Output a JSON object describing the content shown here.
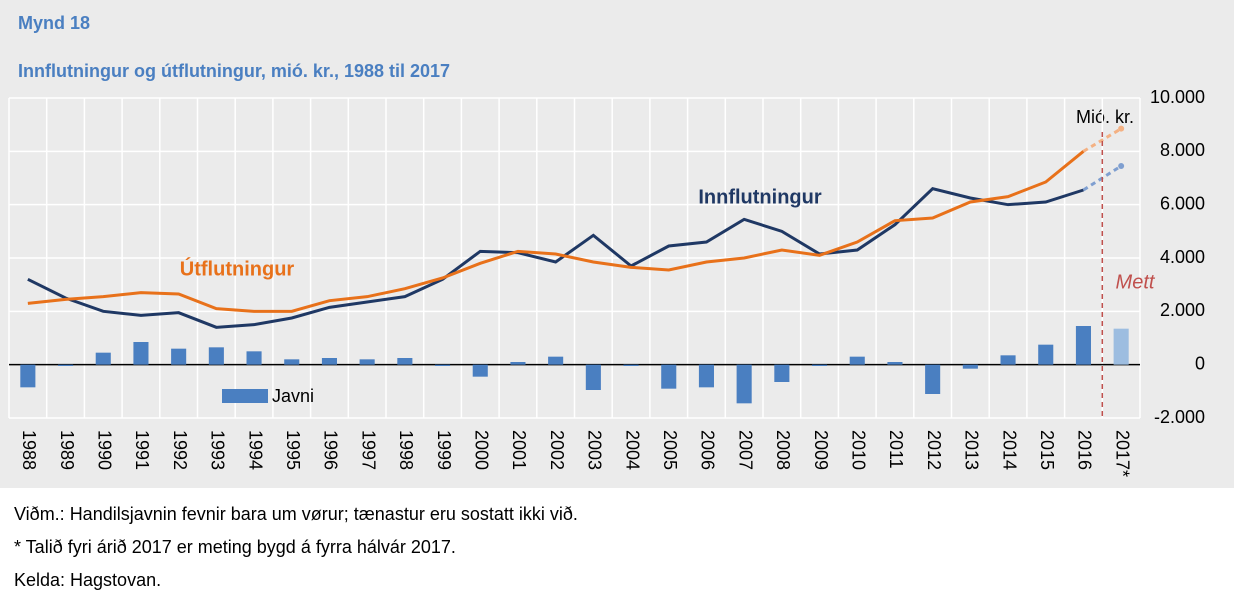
{
  "chart_data": {
    "type": "combo",
    "title": "Mynd 18",
    "subtitle": "Innflutningur og útflutningur, mió. kr., 1988 til 2017",
    "y_unit_label": "Mió. kr.",
    "categories": [
      "1988",
      "1989",
      "1990",
      "1991",
      "1992",
      "1993",
      "1994",
      "1995",
      "1996",
      "1997",
      "1998",
      "1999",
      "2000",
      "2001",
      "2002",
      "2003",
      "2004",
      "2005",
      "2006",
      "2007",
      "2008",
      "2009",
      "2010",
      "2011",
      "2012",
      "2013",
      "2014",
      "2015",
      "2016",
      "2017*"
    ],
    "series": [
      {
        "name": "Javni",
        "kind": "bar",
        "color": "#4a7fc1",
        "estimate_color": "#9dbde0",
        "values": [
          -850,
          -50,
          450,
          850,
          600,
          650,
          500,
          200,
          250,
          200,
          250,
          -50,
          -450,
          100,
          300,
          -950,
          -50,
          -900,
          -850,
          -1450,
          -650,
          -50,
          300,
          100,
          -1100,
          -150,
          350,
          750,
          1450,
          1350
        ]
      },
      {
        "name": "Innflutningur",
        "kind": "line",
        "color": "#1f3864",
        "estimate_color": "#7f9fd0",
        "values": [
          3200,
          2500,
          2000,
          1850,
          1950,
          1400,
          1500,
          1750,
          2150,
          2350,
          2550,
          3200,
          4250,
          4200,
          3850,
          4850,
          3700,
          4450,
          4600,
          5450,
          5000,
          4150,
          4300,
          5250,
          6600,
          6250,
          6000,
          6100,
          6550,
          7450
        ]
      },
      {
        "name": "Útflutningur",
        "kind": "line",
        "color": "#e8711a",
        "estimate_color": "#f4b183",
        "values": [
          2300,
          2450,
          2550,
          2700,
          2650,
          2100,
          2000,
          2000,
          2400,
          2550,
          2850,
          3250,
          3800,
          4250,
          4150,
          3850,
          3650,
          3550,
          3850,
          4000,
          4300,
          4100,
          4600,
          5400,
          5500,
          6100,
          6300,
          6850,
          8000,
          8850
        ]
      }
    ],
    "annotation": {
      "text": "Mett",
      "color": "#c0504d"
    },
    "ylim": [
      -2000,
      10000
    ],
    "yticks": [
      {
        "value": -2000,
        "label": "-2.000"
      },
      0,
      {
        "value": 2000,
        "label": "2.000"
      },
      {
        "value": 4000,
        "label": "4.000"
      },
      {
        "value": 6000,
        "label": "6.000"
      },
      {
        "value": 8000,
        "label": "8.000"
      },
      {
        "value": 10000,
        "label": "10.000"
      }
    ],
    "grid": true,
    "notes": [
      "Viðm.: Handilsjavnin fevnir bara um vørur; tænastur eru sostatt ikki við.",
      "* Talið fyri árið 2017 er meting bygd á fyrra hálvár 2017.",
      "Kelda: Hagstovan."
    ]
  }
}
